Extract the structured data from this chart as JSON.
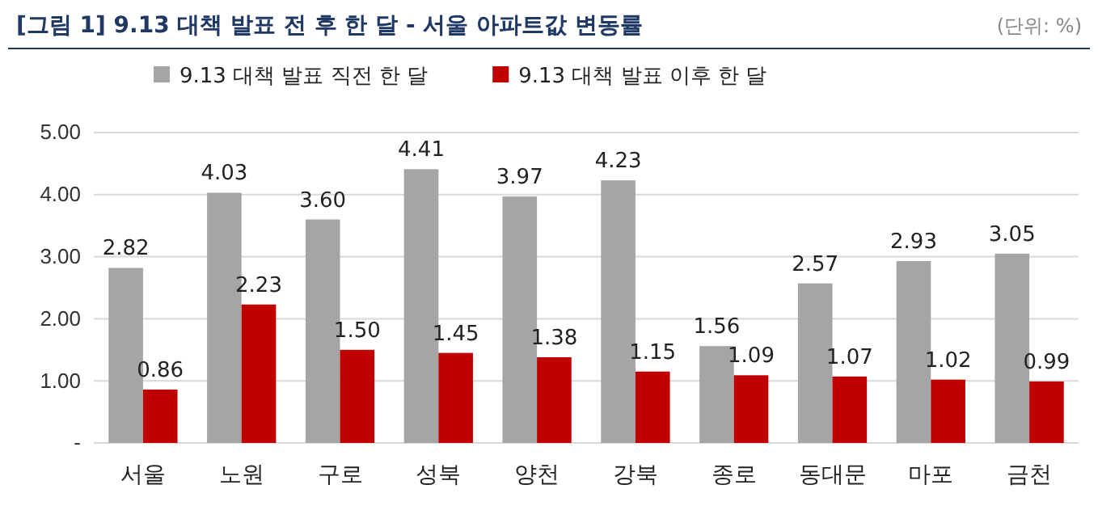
{
  "chart_data": {
    "type": "bar",
    "title": "[그림 1] 9.13 대책 발표 전 후 한 달 - 서울 아파트값 변동률",
    "annotations": [
      "(단위: %)"
    ],
    "categories": [
      "서울",
      "노원",
      "구로",
      "성북",
      "양천",
      "강북",
      "종로",
      "동대문",
      "마포",
      "금천"
    ],
    "series": [
      {
        "name": "9.13 대책 발표 직전 한 달",
        "color": "#a5a5a5",
        "values": [
          2.82,
          4.03,
          3.6,
          4.41,
          3.97,
          4.23,
          1.56,
          2.57,
          2.93,
          3.05
        ],
        "value_labels": [
          "2.82",
          "4.03",
          "3.60",
          "4.41",
          "3.97",
          "4.23",
          "1.56",
          "2.57",
          "2.93",
          "3.05"
        ]
      },
      {
        "name": "9.13 대책 발표 이후 한 달",
        "color": "#c00000",
        "values": [
          0.86,
          2.23,
          1.5,
          1.45,
          1.38,
          1.15,
          1.09,
          1.07,
          1.02,
          0.99
        ],
        "value_labels": [
          "0.86",
          "2.23",
          "1.50",
          "1.45",
          "1.38",
          "1.15",
          "1.09",
          "1.07",
          "1.02",
          "0.99"
        ]
      }
    ],
    "ylim": [
      0,
      5
    ],
    "yticks": [
      {
        "value": 0,
        "label": "-"
      },
      {
        "value": 1,
        "label": "1.00"
      },
      {
        "value": 2,
        "label": "2.00"
      },
      {
        "value": 3,
        "label": "3.00"
      },
      {
        "value": 4,
        "label": "4.00"
      },
      {
        "value": 5,
        "label": "5.00"
      }
    ],
    "grid": "y",
    "legend": "top"
  }
}
